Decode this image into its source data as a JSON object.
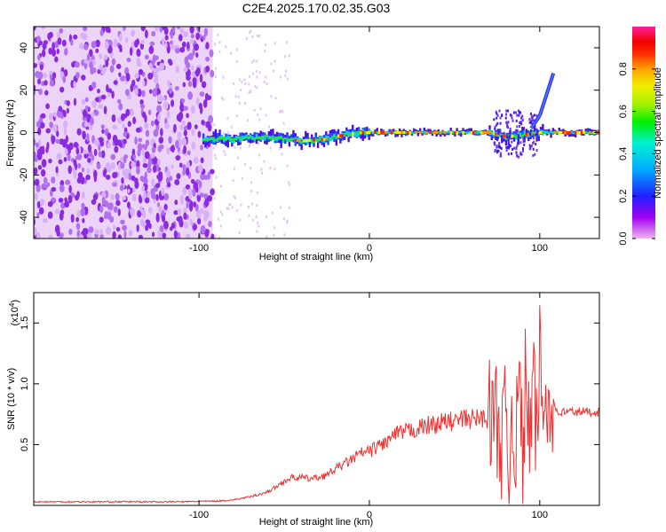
{
  "title": "C2E4.2025.170.02.35.G03",
  "chart_data": [
    {
      "type": "heatmap",
      "xlabel": "Height of straight line (km)",
      "ylabel": "Frequency (Hz)",
      "xlim": [
        -197,
        135
      ],
      "ylim": [
        -50,
        50
      ],
      "x_ticks": [
        -100,
        0,
        100
      ],
      "x_tick_labels": [
        "-100",
        "0",
        "100"
      ],
      "y_ticks": [
        -40,
        -20,
        0,
        20,
        40
      ],
      "y_tick_labels": [
        "-40",
        "-20",
        "0",
        "20",
        "40"
      ],
      "colorbar": {
        "label": "Normalized spectral amplitude",
        "range": [
          0,
          1
        ],
        "ticks": [
          0.0,
          0.2,
          0.4,
          0.6,
          0.8
        ],
        "tick_labels": [
          "0.0",
          "0.2",
          "0.4",
          "0.6",
          "0.8"
        ],
        "colors": [
          "#f0b4f0",
          "#a000f0",
          "#2020ff",
          "#00b0ff",
          "#00f0d0",
          "#00f000",
          "#a0f000",
          "#f0f000",
          "#ffa000",
          "#ff3000",
          "#f00000",
          "#ff20a0"
        ]
      },
      "noise_region_x": [
        -197,
        -92
      ],
      "ridge": [
        {
          "x": -100,
          "y": -3
        },
        {
          "x": -80,
          "y": -3
        },
        {
          "x": -60,
          "y": -2
        },
        {
          "x": -40,
          "y": -4
        },
        {
          "x": -25,
          "y": -3
        },
        {
          "x": -15,
          "y": -1
        },
        {
          "x": -5,
          "y": 0
        },
        {
          "x": 10,
          "y": 0
        },
        {
          "x": 40,
          "y": 0
        },
        {
          "x": 70,
          "y": 0
        },
        {
          "x": 80,
          "y": -2
        },
        {
          "x": 90,
          "y": -1
        },
        {
          "x": 100,
          "y": 0
        },
        {
          "x": 135,
          "y": 0
        }
      ],
      "branch": [
        {
          "x": 95,
          "y": 2
        },
        {
          "x": 100,
          "y": 8
        },
        {
          "x": 104,
          "y": 18
        },
        {
          "x": 108,
          "y": 28
        }
      ]
    },
    {
      "type": "line",
      "xlabel": "Height of straight line (km)",
      "ylabel": "SNR (10 * v/v)",
      "y_multiplier": "(x10",
      "y_multiplier_exp": "4",
      "y_multiplier_close": ")",
      "xlim": [
        -197,
        135
      ],
      "ylim": [
        0,
        17500
      ],
      "x_ticks": [
        -100,
        0,
        100
      ],
      "x_tick_labels": [
        "-100",
        "0",
        "100"
      ],
      "y_ticks": [
        5000,
        10000,
        15000
      ],
      "y_tick_labels": [
        "0.5",
        "1.0",
        "1.5"
      ],
      "color": "#f03030",
      "series": [
        {
          "x": [
            -197,
            -150,
            -110,
            -90,
            -80,
            -70,
            -60,
            -55,
            -50,
            -45,
            -40,
            -35,
            -30,
            -25,
            -20,
            -15,
            -10,
            -5,
            0,
            5,
            10,
            15,
            20,
            25,
            30,
            35,
            40,
            45,
            50,
            55,
            60,
            65,
            70,
            72,
            74,
            76,
            78,
            80,
            82,
            84,
            86,
            88,
            90,
            92,
            94,
            96,
            98,
            100,
            102,
            104,
            106,
            108,
            110,
            115,
            120,
            125,
            130,
            135
          ],
          "values": [
            300,
            300,
            300,
            350,
            450,
            700,
            1100,
            1500,
            2000,
            2300,
            2300,
            2200,
            2300,
            2500,
            3000,
            3400,
            3800,
            4300,
            4400,
            4900,
            5200,
            5800,
            6000,
            6200,
            6400,
            6600,
            6700,
            6900,
            6900,
            7100,
            7100,
            7200,
            7200,
            7300,
            7200,
            7000,
            5000,
            7000,
            3000,
            9000,
            4000,
            11000,
            3500,
            12000,
            4500,
            10000,
            5000,
            13000,
            6000,
            11000,
            7000,
            9000,
            7600,
            7700,
            7700,
            7700,
            7700,
            7700
          ]
        }
      ]
    }
  ]
}
